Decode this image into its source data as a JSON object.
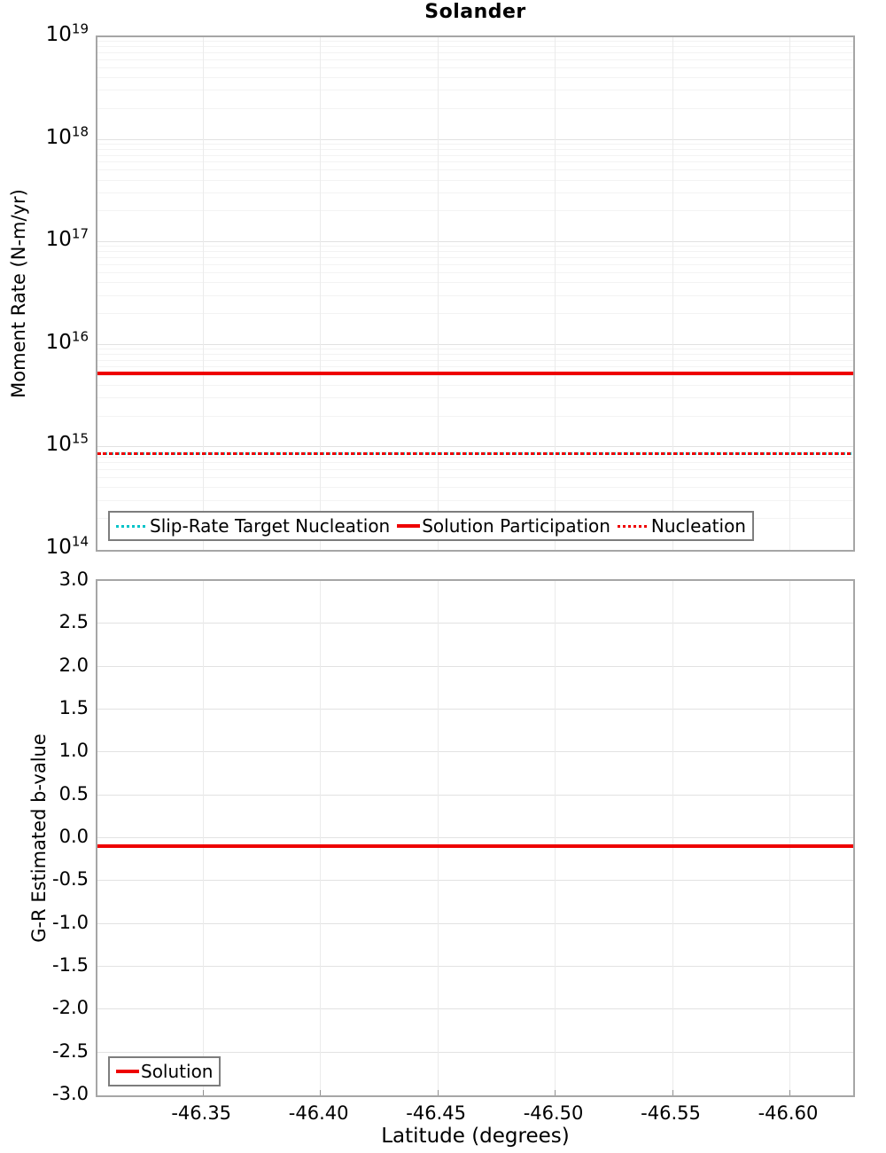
{
  "title": "Solander",
  "colors": {
    "series_red": "#ee0000",
    "series_cyan": "#00c3c8",
    "grid_major": "#e2e2e2",
    "grid_minor": "#f3f3f3",
    "grid_vertical": "#ebebeb",
    "axis_border": "#a6a6a6",
    "legend_border": "#7d7d7d"
  },
  "chart_data": [
    {
      "type": "line",
      "title": "Solander",
      "ylabel": "Moment Rate (N-m/yr)",
      "yscale": "log",
      "ylim": [
        100000000000000.0,
        1e+19
      ],
      "y_tick_exponents": [
        19,
        18,
        17,
        16,
        15,
        14
      ],
      "xlim": [
        -46.305,
        -46.627
      ],
      "x_ticks": [
        -46.35,
        -46.4,
        -46.45,
        -46.5,
        -46.55,
        -46.6
      ],
      "grid": true,
      "legend_position": "bottom-left",
      "series": [
        {
          "name": "Slip-Rate Target Nucleation",
          "style": "dotted",
          "color": "#00c3c8",
          "y_value": 860000000000000.0
        },
        {
          "name": "Solution Participation",
          "style": "solid",
          "color": "#ee0000",
          "y_value": 5300000000000000.0
        },
        {
          "name": "Nucleation",
          "style": "dotted",
          "color": "#ee0000",
          "y_value": 860000000000000.0
        }
      ]
    },
    {
      "type": "line",
      "title": "",
      "ylabel": "G-R Estimated b-value",
      "xlabel": "Latitude (degrees)",
      "yscale": "linear",
      "ylim": [
        -3.0,
        3.0
      ],
      "y_ticks": [
        3.0,
        2.5,
        2.0,
        1.5,
        1.0,
        0.5,
        0.0,
        -0.5,
        -1.0,
        -1.5,
        -2.0,
        -2.5,
        -3.0
      ],
      "y_tick_labels": [
        "3.0",
        "2.5",
        "2.0",
        "1.5",
        "1.0",
        "0.5",
        "0.0",
        "-0.5",
        "-1.0",
        "-1.5",
        "-2.0",
        "-2.5",
        "-3.0"
      ],
      "xlim": [
        -46.305,
        -46.627
      ],
      "x_ticks": [
        -46.35,
        -46.4,
        -46.45,
        -46.5,
        -46.55,
        -46.6
      ],
      "x_tick_labels": [
        "-46.35",
        "-46.40",
        "-46.45",
        "-46.50",
        "-46.55",
        "-46.60"
      ],
      "grid": true,
      "legend_position": "bottom-left",
      "series": [
        {
          "name": "Solution",
          "style": "solid",
          "color": "#ee0000",
          "y_value": -0.09
        }
      ]
    }
  ]
}
